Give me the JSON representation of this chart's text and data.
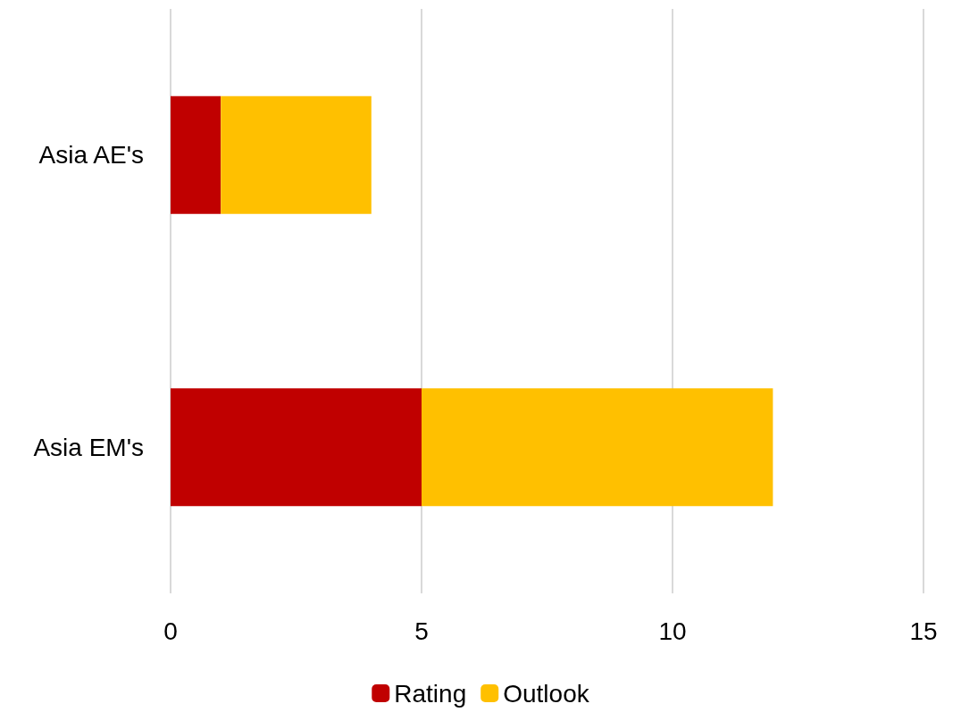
{
  "chart_data": {
    "type": "bar",
    "orientation": "horizontal",
    "stacked": true,
    "categories": [
      "Asia AE's",
      "Asia EM's"
    ],
    "series": [
      {
        "name": "Rating",
        "color": "#c00000",
        "values": [
          1,
          5
        ]
      },
      {
        "name": "Outlook",
        "color": "#ffc000",
        "values": [
          3,
          7
        ]
      }
    ],
    "xlim": [
      0,
      15
    ],
    "xticks": [
      0,
      5,
      10,
      15
    ],
    "grid": "x",
    "legend": "bottom"
  }
}
